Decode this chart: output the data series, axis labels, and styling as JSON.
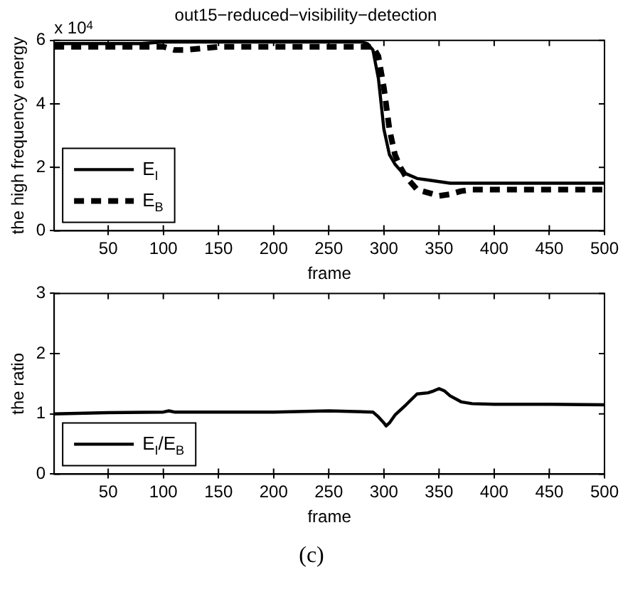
{
  "chart_data": [
    {
      "type": "line",
      "title": "out15−reduced−visibility−detection",
      "xlabel": "frame",
      "ylabel": "the high frequency energy",
      "annotations": [
        "x 10$^{4}$"
      ],
      "x": [
        1,
        20,
        50,
        80,
        100,
        110,
        120,
        150,
        200,
        250,
        280,
        285,
        290,
        295,
        300,
        305,
        310,
        315,
        320,
        330,
        340,
        350,
        360,
        370,
        380,
        400,
        450,
        500
      ],
      "series": [
        {
          "name": "E$_{I}$",
          "color": "#000000",
          "line_style": "solid",
          "values": [
            5.9,
            5.9,
            5.9,
            5.9,
            5.95,
            5.95,
            5.95,
            5.95,
            5.95,
            5.95,
            5.95,
            5.9,
            5.7,
            4.8,
            3.2,
            2.4,
            2.1,
            1.9,
            1.8,
            1.65,
            1.6,
            1.55,
            1.5,
            1.5,
            1.5,
            1.5,
            1.5,
            1.5
          ]
        },
        {
          "name": "E$_{B}$",
          "color": "#000000",
          "line_style": "dashed",
          "values": [
            5.8,
            5.8,
            5.8,
            5.8,
            5.8,
            5.7,
            5.7,
            5.8,
            5.8,
            5.8,
            5.8,
            5.8,
            5.8,
            5.5,
            4.5,
            3.2,
            2.4,
            2.0,
            1.7,
            1.3,
            1.2,
            1.1,
            1.15,
            1.25,
            1.3,
            1.3,
            1.3,
            1.3
          ]
        }
      ],
      "xlim": [
        1,
        500
      ],
      "xticks": [
        50,
        100,
        150,
        200,
        250,
        300,
        350,
        400,
        450,
        500
      ],
      "ylim": [
        0,
        6
      ],
      "yticks": [
        0,
        2,
        4,
        6
      ],
      "grid": false,
      "legend": "bottom left",
      "marker": "none"
    },
    {
      "type": "line",
      "xlabel": "frame",
      "ylabel": "the ratio",
      "annotations": [
        "(c)"
      ],
      "x": [
        1,
        50,
        100,
        105,
        110,
        150,
        200,
        250,
        290,
        295,
        300,
        302,
        305,
        310,
        320,
        330,
        340,
        345,
        350,
        355,
        360,
        370,
        380,
        400,
        450,
        500
      ],
      "series": [
        {
          "name": "E$_{I}$/E$_{B}$",
          "color": "#000000",
          "line_style": "solid",
          "values": [
            1.0,
            1.02,
            1.03,
            1.05,
            1.03,
            1.03,
            1.03,
            1.05,
            1.03,
            0.95,
            0.85,
            0.8,
            0.85,
            0.98,
            1.15,
            1.33,
            1.35,
            1.38,
            1.42,
            1.38,
            1.3,
            1.2,
            1.17,
            1.16,
            1.16,
            1.15
          ]
        }
      ],
      "xlim": [
        1,
        500
      ],
      "xticks": [
        50,
        100,
        150,
        200,
        250,
        300,
        350,
        400,
        450,
        500
      ],
      "ylim": [
        0,
        3
      ],
      "yticks": [
        0,
        1,
        2,
        3
      ],
      "grid": false,
      "legend": "bottom left",
      "marker": "none"
    }
  ]
}
